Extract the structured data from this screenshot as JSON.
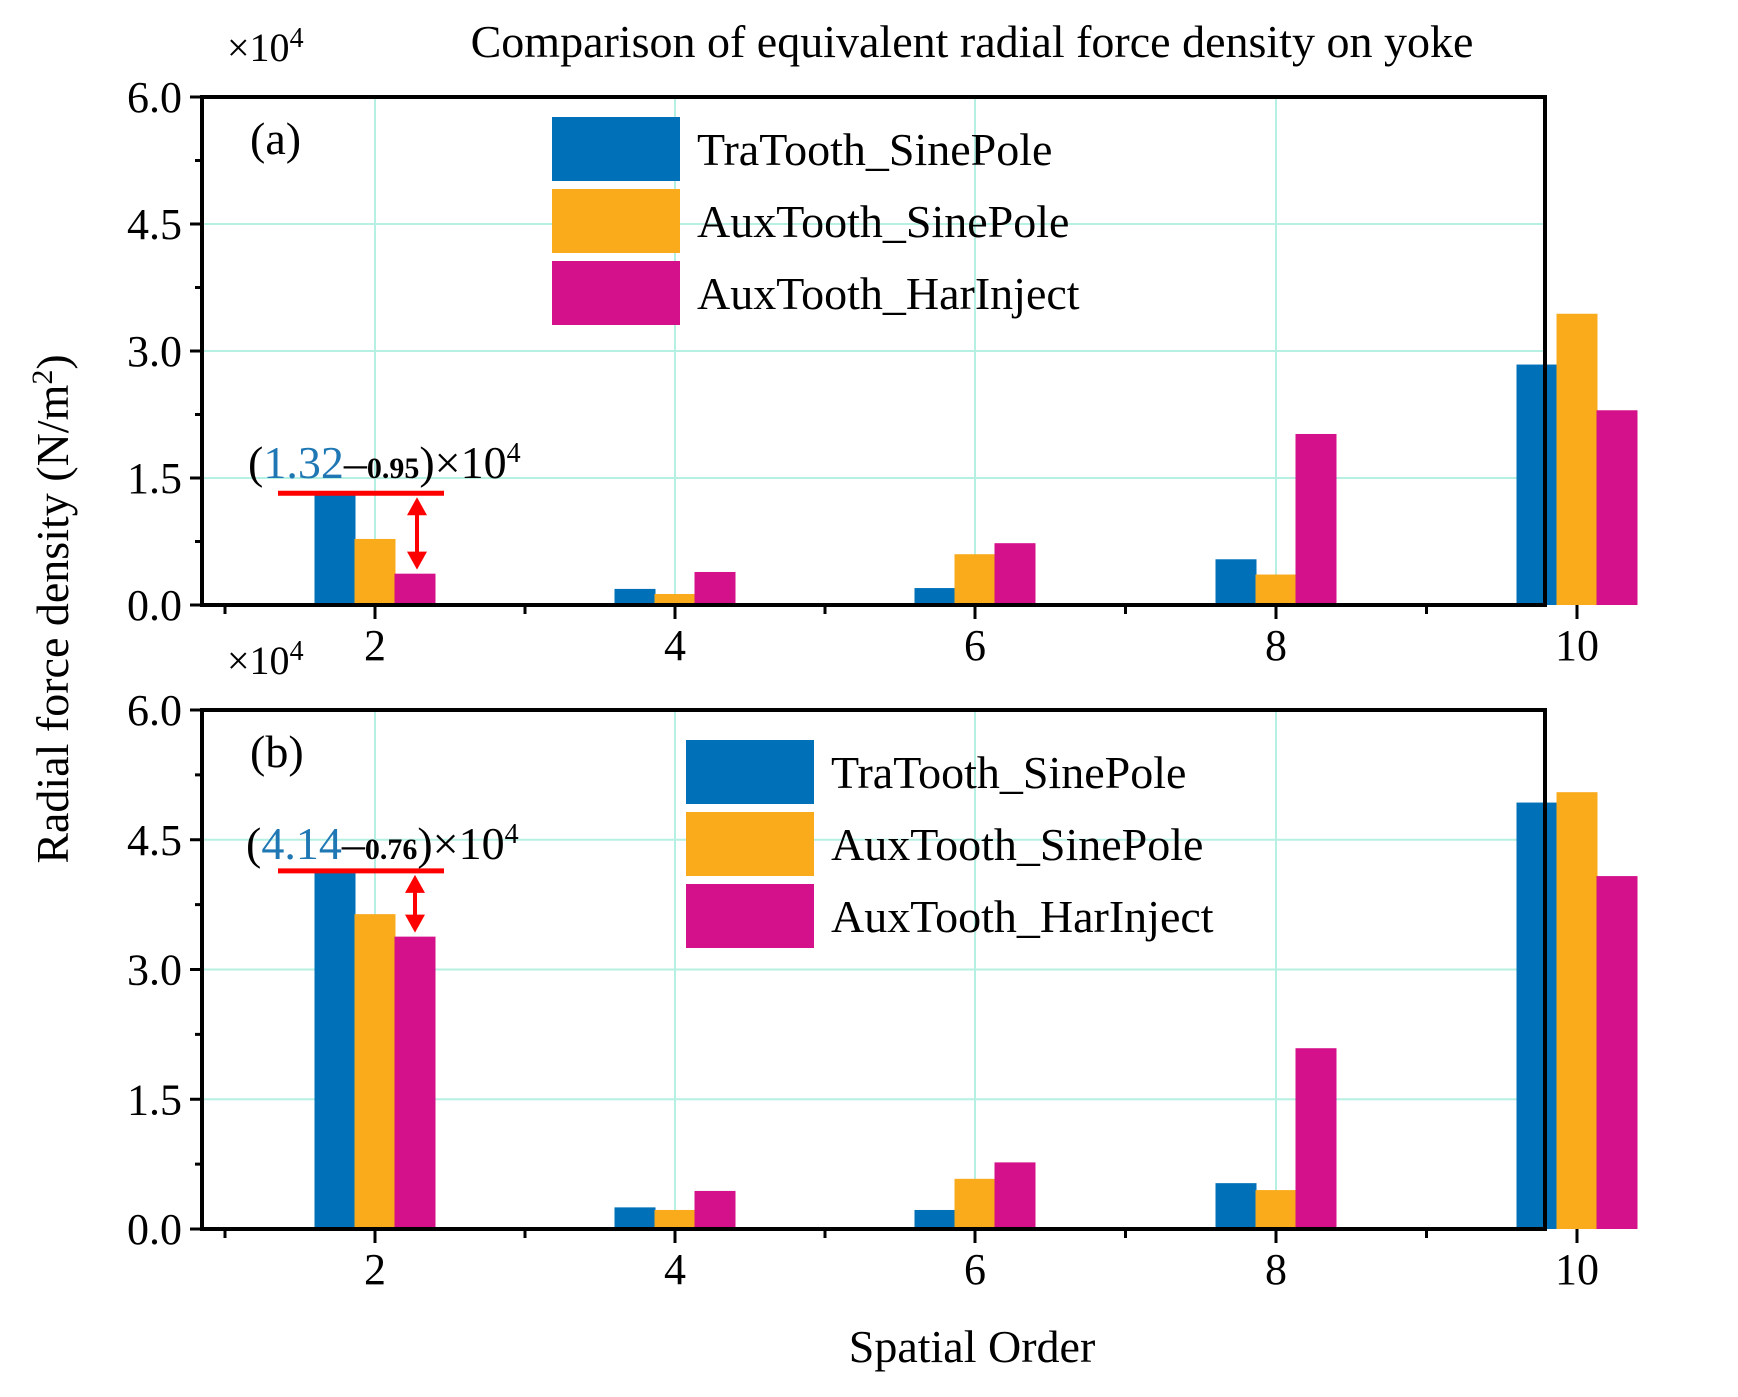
{
  "chart_data": {
    "type": "bar",
    "title": "Comparison of equivalent radial force density on yoke",
    "xlabel": "Spatial Order",
    "ylabel": "Radial force density (N/m",
    "ylabel_sup": "2",
    "ylabel_close": ")",
    "ylim": [
      0,
      60000
    ],
    "y_ticks": [
      "0.0",
      "1.5",
      "3.0",
      "4.5",
      "6.0"
    ],
    "y_multiplier": "×10",
    "y_multiplier_exp": "4",
    "categories": [
      "2",
      "4",
      "6",
      "8",
      "10"
    ],
    "colors": {
      "TraTooth_SinePole": "#0070b8",
      "AuxTooth_SinePole": "#f9ab1c",
      "AuxTooth_HarInject": "#d4108a",
      "annotation_line": "#ff0000",
      "annotation_value": "#1f77b4",
      "grid": "#b5f0e2"
    },
    "grid": true,
    "panels": [
      {
        "label": "(a)",
        "series": [
          {
            "name": "TraTooth_SinePole",
            "values": [
              13200,
              1900,
              2000,
              5400,
              28400
            ]
          },
          {
            "name": "AuxTooth_SinePole",
            "values": [
              7800,
              1300,
              6000,
              3600,
              34400
            ]
          },
          {
            "name": "AuxTooth_HarInject",
            "values": [
              3700,
              3900,
              7300,
              20200,
              23000
            ]
          }
        ],
        "annotation": {
          "open": "(",
          "high": "1.32",
          "minus": "–",
          "low": "0.95",
          "close": ")×10",
          "exp": "4"
        }
      },
      {
        "label": "(b)",
        "series": [
          {
            "name": "TraTooth_SinePole",
            "values": [
              41400,
              2500,
              2200,
              5300,
              49300
            ]
          },
          {
            "name": "AuxTooth_SinePole",
            "values": [
              36400,
              2200,
              5800,
              4500,
              50500
            ]
          },
          {
            "name": "AuxTooth_HarInject",
            "values": [
              33800,
              4400,
              7700,
              20900,
              40800
            ]
          }
        ],
        "annotation": {
          "open": "(",
          "high": "4.14",
          "minus": "–",
          "low": "0.76",
          "close": ")×10",
          "exp": "4"
        }
      }
    ]
  }
}
